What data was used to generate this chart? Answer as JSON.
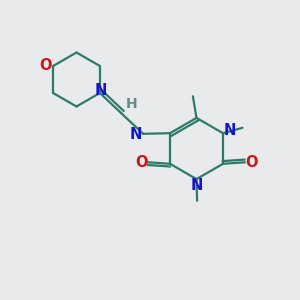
{
  "bg_color": "#e8eaec",
  "bond_color": "#2e7a6a",
  "N_color": "#1515cc",
  "O_color": "#cc1515",
  "H_color": "#6a8a8a",
  "line_width": 1.6,
  "font_size": 10.5,
  "figsize": [
    3.0,
    3.0
  ],
  "dpi": 100,
  "xlim": [
    0,
    10
  ],
  "ylim": [
    0,
    10
  ]
}
